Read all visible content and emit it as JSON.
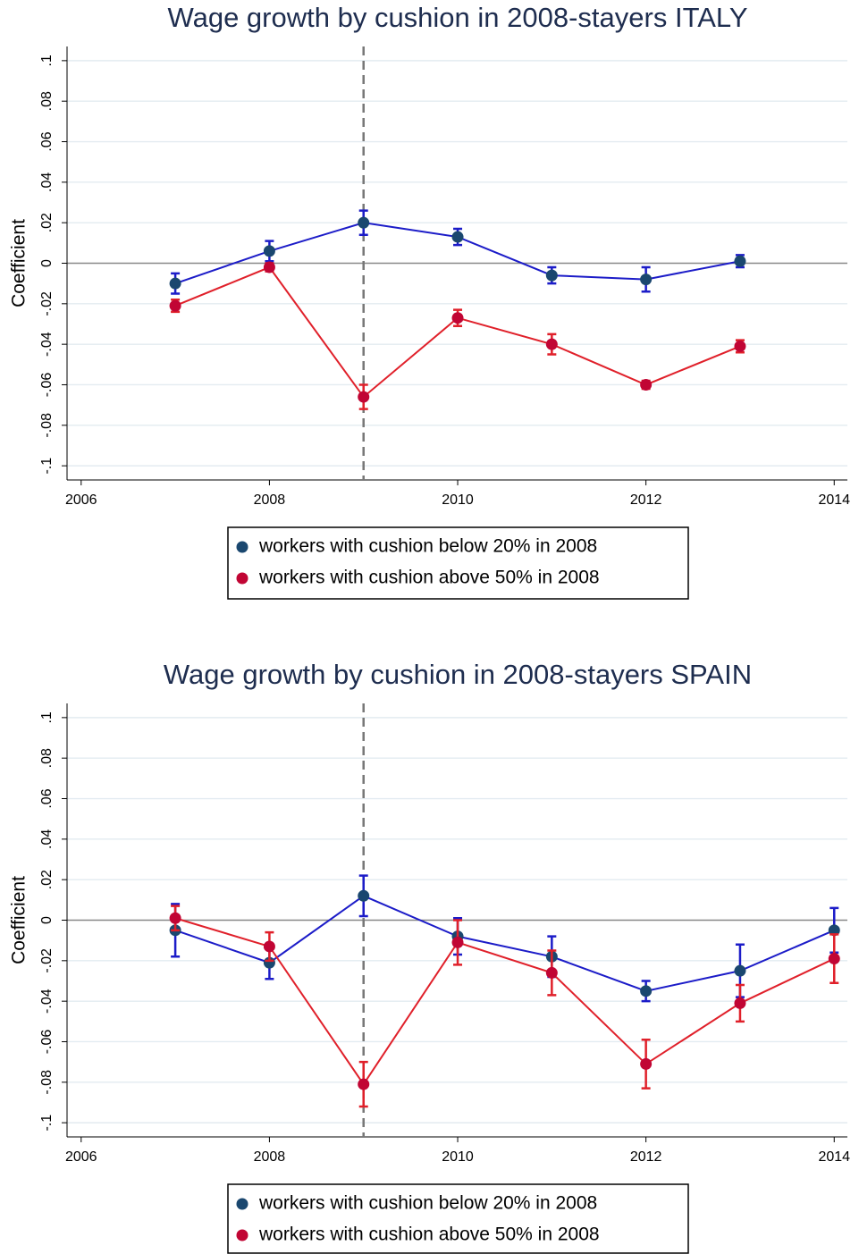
{
  "chart_data": [
    {
      "type": "line",
      "title": "Wage growth by cushion in 2008-stayers ITALY",
      "y_label": "Coefficient",
      "x": [
        2007,
        2008,
        2009,
        2010,
        2011,
        2012,
        2013
      ],
      "xlim": [
        2005.85,
        2014.14
      ],
      "xticks": [
        2006,
        2008,
        2010,
        2012,
        2014
      ],
      "ylim": [
        -0.107,
        0.107
      ],
      "yticks": [
        {
          "value": -0.1,
          "label": "-.1"
        },
        {
          "value": -0.08,
          "label": "-.08"
        },
        {
          "value": -0.06,
          "label": "-.06"
        },
        {
          "value": -0.04,
          "label": "-.04"
        },
        {
          "value": -0.02,
          "label": "-.02"
        },
        0,
        {
          "value": 0.02,
          "label": ".02"
        },
        {
          "value": 0.04,
          "label": ".04"
        },
        {
          "value": 0.06,
          "label": ".06"
        },
        {
          "value": 0.08,
          "label": ".08"
        },
        {
          "value": 0.1,
          "label": ".1"
        }
      ],
      "grid": true,
      "vline": 2009,
      "series": [
        {
          "name": "workers with cushion below 20% in 2008",
          "color": "#1c1cc8",
          "marker_color": "#1a476f",
          "values": [
            -0.01,
            0.006,
            0.02,
            0.013,
            -0.006,
            -0.008,
            0.001
          ],
          "errors": [
            0.005,
            0.005,
            0.006,
            0.004,
            0.004,
            0.006,
            0.003
          ]
        },
        {
          "name": "workers with cushion above 50% in 2008",
          "color": "#e0202a",
          "marker_color": "#c10534",
          "values": [
            -0.021,
            -0.002,
            -0.066,
            -0.027,
            -0.04,
            -0.06,
            -0.041
          ],
          "errors": [
            0.003,
            0.002,
            0.006,
            0.004,
            0.005,
            0.002,
            0.003
          ]
        }
      ]
    },
    {
      "type": "line",
      "title": "Wage growth by cushion in 2008-stayers SPAIN",
      "y_label": "Coefficient",
      "x": [
        2007,
        2008,
        2009,
        2010,
        2011,
        2012,
        2013,
        2014
      ],
      "xlim": [
        2005.85,
        2014.14
      ],
      "xticks": [
        2006,
        2008,
        2010,
        2012,
        2014
      ],
      "ylim": [
        -0.107,
        0.107
      ],
      "yticks": [
        {
          "value": -0.1,
          "label": "-.1"
        },
        {
          "value": -0.08,
          "label": "-.08"
        },
        {
          "value": -0.06,
          "label": "-.06"
        },
        {
          "value": -0.04,
          "label": "-.04"
        },
        {
          "value": -0.02,
          "label": "-.02"
        },
        0,
        {
          "value": 0.02,
          "label": ".02"
        },
        {
          "value": 0.04,
          "label": ".04"
        },
        {
          "value": 0.06,
          "label": ".06"
        },
        {
          "value": 0.08,
          "label": ".08"
        },
        {
          "value": 0.1,
          "label": ".1"
        }
      ],
      "grid": true,
      "vline": 2009,
      "series": [
        {
          "name": "workers with cushion below 20% in 2008",
          "color": "#1c1cc8",
          "marker_color": "#1a476f",
          "values": [
            -0.005,
            -0.021,
            0.012,
            -0.008,
            -0.018,
            -0.035,
            -0.025,
            -0.005
          ],
          "errors": [
            0.013,
            0.008,
            0.01,
            0.009,
            0.01,
            0.005,
            0.013,
            0.011
          ]
        },
        {
          "name": "workers with cushion above 50% in 2008",
          "color": "#e0202a",
          "marker_color": "#c10534",
          "values": [
            0.001,
            -0.013,
            -0.081,
            -0.011,
            -0.026,
            -0.071,
            -0.041,
            -0.019
          ],
          "errors": [
            0.006,
            0.007,
            0.011,
            0.011,
            0.011,
            0.012,
            0.009,
            0.012
          ]
        }
      ]
    }
  ]
}
